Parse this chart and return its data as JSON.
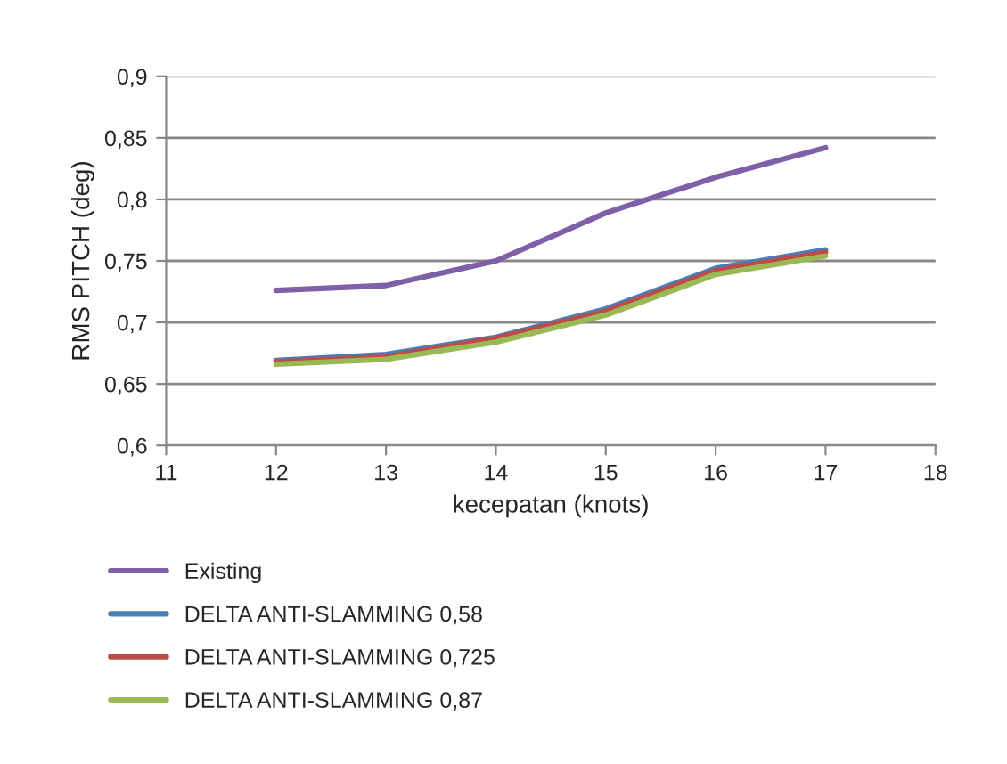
{
  "chart_data": {
    "type": "line",
    "xlabel": "kecepatan (knots)",
    "ylabel": "RMS PITCH (deg)",
    "x": [
      12,
      13,
      14,
      15,
      16,
      17
    ],
    "xlim": [
      11,
      18
    ],
    "xticks": [
      11,
      12,
      13,
      14,
      15,
      16,
      17,
      18
    ],
    "ylim": [
      0.6,
      0.9
    ],
    "yticks": [
      {
        "value": 0.6,
        "label": "0,6"
      },
      {
        "value": 0.65,
        "label": "0,65"
      },
      {
        "value": 0.7,
        "label": "0,7"
      },
      {
        "value": 0.75,
        "label": "0,75"
      },
      {
        "value": 0.8,
        "label": "0,8"
      },
      {
        "value": 0.85,
        "label": "0,85"
      },
      {
        "value": 0.9,
        "label": "0,9"
      }
    ],
    "grid": "y",
    "legend": "bottom",
    "marker": "none",
    "line_style": "solid",
    "series": [
      {
        "name": "Existing",
        "color": "#7f5fa8",
        "values": [
          0.726,
          0.73,
          0.75,
          0.789,
          0.818,
          0.842
        ]
      },
      {
        "name": "DELTA ANTI-SLAMMING 0,58",
        "color": "#4a7ebb",
        "values": [
          0.669,
          0.674,
          0.688,
          0.711,
          0.744,
          0.759
        ]
      },
      {
        "name": "DELTA ANTI-SLAMMING 0,725",
        "color": "#be4b48",
        "values": [
          0.668,
          0.672,
          0.687,
          0.709,
          0.742,
          0.757
        ]
      },
      {
        "name": "DELTA ANTI-SLAMMING 0,87",
        "color": "#98b954",
        "values": [
          0.666,
          0.67,
          0.684,
          0.706,
          0.739,
          0.754
        ]
      }
    ]
  }
}
